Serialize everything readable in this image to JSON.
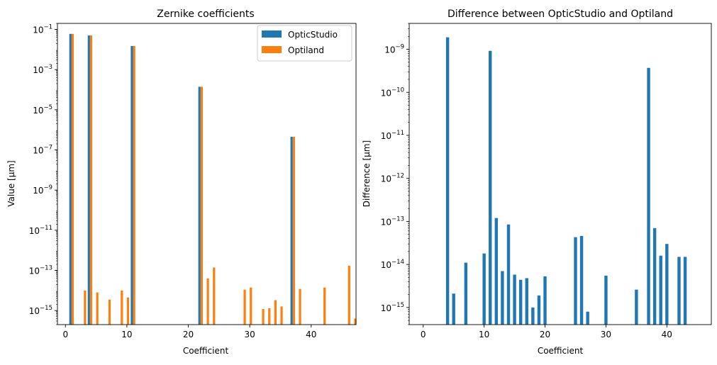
{
  "chart_data": [
    {
      "type": "bar",
      "title": "Zernike coefficients",
      "xlabel": "Coefficient",
      "ylabel": "Value [µm]",
      "yscale": "log",
      "ylim": [
        2e-16,
        0.2
      ],
      "xlim": [
        -1.3,
        47.3
      ],
      "legend_position": "top-right",
      "x_ticks": [
        0,
        10,
        20,
        30,
        40
      ],
      "y_ticks": [
        {
          "exp": -1,
          "label": "10",
          "sup": "−1"
        },
        {
          "exp": -3,
          "label": "10",
          "sup": "−3"
        },
        {
          "exp": -5,
          "label": "10",
          "sup": "−5"
        },
        {
          "exp": -7,
          "label": "10",
          "sup": "−7"
        },
        {
          "exp": -9,
          "label": "10",
          "sup": "−9"
        },
        {
          "exp": -11,
          "label": "10",
          "sup": "−11"
        },
        {
          "exp": -13,
          "label": "10",
          "sup": "−13"
        },
        {
          "exp": -15,
          "label": "10",
          "sup": "−15"
        }
      ],
      "series": [
        {
          "name": "OpticStudio",
          "color": "#1f77b4",
          "points": [
            {
              "x": 1,
              "y": 0.06
            },
            {
              "x": 4,
              "y": 0.05
            },
            {
              "x": 11,
              "y": 0.015
            },
            {
              "x": 22,
              "y": 0.00014
            },
            {
              "x": 37,
              "y": 4.5e-07
            }
          ]
        },
        {
          "name": "Optiland",
          "color": "#ff7f0e",
          "points": [
            {
              "x": 1,
              "y": 0.06
            },
            {
              "x": 3,
              "y": 1e-14
            },
            {
              "x": 4,
              "y": 0.05
            },
            {
              "x": 5,
              "y": 8e-15
            },
            {
              "x": 7,
              "y": 3.5e-15
            },
            {
              "x": 9,
              "y": 1e-14
            },
            {
              "x": 10,
              "y": 4.5e-15
            },
            {
              "x": 11,
              "y": 0.015
            },
            {
              "x": 22,
              "y": 0.00014
            },
            {
              "x": 23,
              "y": 4e-14
            },
            {
              "x": 24,
              "y": 1.4e-13
            },
            {
              "x": 29,
              "y": 1.1e-14
            },
            {
              "x": 30,
              "y": 1.4e-14
            },
            {
              "x": 32,
              "y": 1.2e-15
            },
            {
              "x": 33,
              "y": 1.3e-15
            },
            {
              "x": 34,
              "y": 3.3e-15
            },
            {
              "x": 35,
              "y": 1.6e-15
            },
            {
              "x": 37,
              "y": 4.5e-07
            },
            {
              "x": 38,
              "y": 1.2e-14
            },
            {
              "x": 42,
              "y": 1.4e-14
            },
            {
              "x": 46,
              "y": 1.7e-13
            },
            {
              "x": 47,
              "y": 4e-16
            }
          ]
        }
      ]
    },
    {
      "type": "bar",
      "title": "Difference between OpticStudio and Optiland",
      "xlabel": "Coefficient",
      "ylabel": "Difference [µm]",
      "yscale": "log",
      "ylim": [
        4e-16,
        4e-09
      ],
      "xlim": [
        -2.3,
        47.3
      ],
      "x_ticks": [
        0,
        10,
        20,
        30,
        40
      ],
      "y_ticks": [
        {
          "exp": -9,
          "label": "10",
          "sup": "−9"
        },
        {
          "exp": -10,
          "label": "10",
          "sup": "−10"
        },
        {
          "exp": -11,
          "label": "10",
          "sup": "−11"
        },
        {
          "exp": -12,
          "label": "10",
          "sup": "−12"
        },
        {
          "exp": -13,
          "label": "10",
          "sup": "−13"
        },
        {
          "exp": -14,
          "label": "10",
          "sup": "−14"
        },
        {
          "exp": -15,
          "label": "10",
          "sup": "−15"
        }
      ],
      "series": [
        {
          "color": "#1f77b4",
          "points": [
            {
              "x": 4,
              "y": 1.9e-09
            },
            {
              "x": 5,
              "y": 2.1e-15
            },
            {
              "x": 7,
              "y": 1.1e-14
            },
            {
              "x": 10,
              "y": 1.8e-14
            },
            {
              "x": 11,
              "y": 9.2e-10
            },
            {
              "x": 12,
              "y": 1.2e-13
            },
            {
              "x": 13,
              "y": 7e-15
            },
            {
              "x": 14,
              "y": 8.5e-14
            },
            {
              "x": 15,
              "y": 5.8e-15
            },
            {
              "x": 16,
              "y": 4.4e-15
            },
            {
              "x": 17,
              "y": 4.8e-15
            },
            {
              "x": 18,
              "y": 1e-15
            },
            {
              "x": 19,
              "y": 1.9e-15
            },
            {
              "x": 20,
              "y": 5.3e-15
            },
            {
              "x": 25,
              "y": 4.3e-14
            },
            {
              "x": 26,
              "y": 4.6e-14
            },
            {
              "x": 27,
              "y": 8e-16
            },
            {
              "x": 30,
              "y": 5.5e-15
            },
            {
              "x": 35,
              "y": 2.6e-15
            },
            {
              "x": 37,
              "y": 3.7e-10
            },
            {
              "x": 38,
              "y": 7e-14
            },
            {
              "x": 39,
              "y": 1.6e-14
            },
            {
              "x": 40,
              "y": 3e-14
            },
            {
              "x": 42,
              "y": 1.5e-14
            },
            {
              "x": 43,
              "y": 1.5e-14
            }
          ]
        }
      ]
    }
  ]
}
